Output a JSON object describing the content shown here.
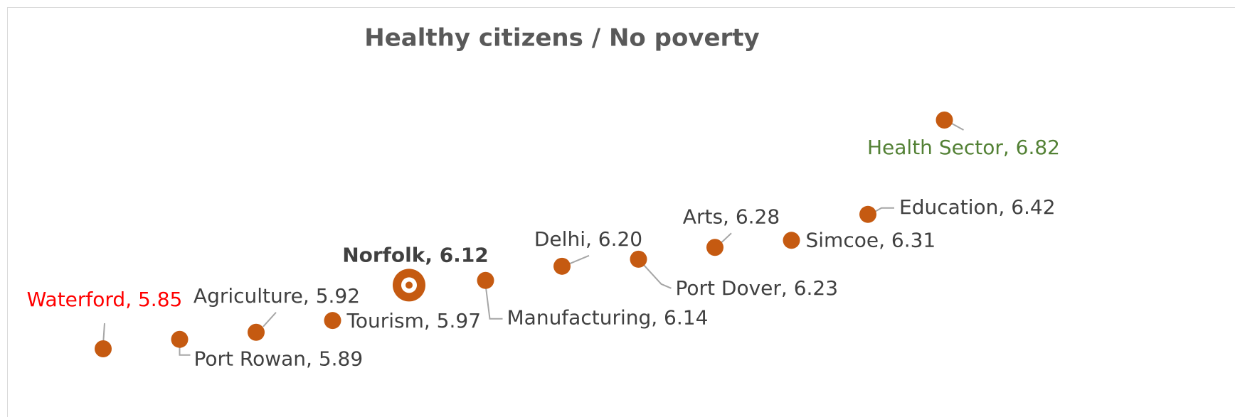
{
  "chart_data": {
    "type": "dot",
    "title": "Healthy citizens / No poverty",
    "values": [
      5.85,
      5.89,
      5.92,
      5.97,
      6.12,
      6.14,
      6.2,
      6.23,
      6.28,
      6.31,
      6.42,
      6.82
    ],
    "value_labels": [
      "Waterford, 5.85",
      "Port Rowan, 5.89",
      "Agriculture, 5.92",
      "Tourism, 5.97",
      "Norfolk, 6.12",
      "Manufacturing, 6.14",
      "Delhi, 6.20",
      "Port Dover, 6.23",
      "Arts, 6.28",
      "Simcoe, 6.31",
      "Education, 6.42",
      "Health Sector, 6.82"
    ],
    "color": "#c55a11",
    "label_colors": [
      "#ff0000",
      "#404040",
      "#404040",
      "#404040",
      "#404040",
      "#404040",
      "#404040",
      "#404040",
      "#404040",
      "#404040",
      "#404040",
      "#538135"
    ],
    "label_weights": [
      "normal",
      "normal",
      "normal",
      "normal",
      "bold",
      "normal",
      "normal",
      "normal",
      "normal",
      "normal",
      "normal",
      "normal"
    ],
    "marker_styles": [
      "dot",
      "dot",
      "dot",
      "dot",
      "target",
      "dot",
      "dot",
      "dot",
      "dot",
      "dot",
      "dot",
      "dot"
    ]
  }
}
